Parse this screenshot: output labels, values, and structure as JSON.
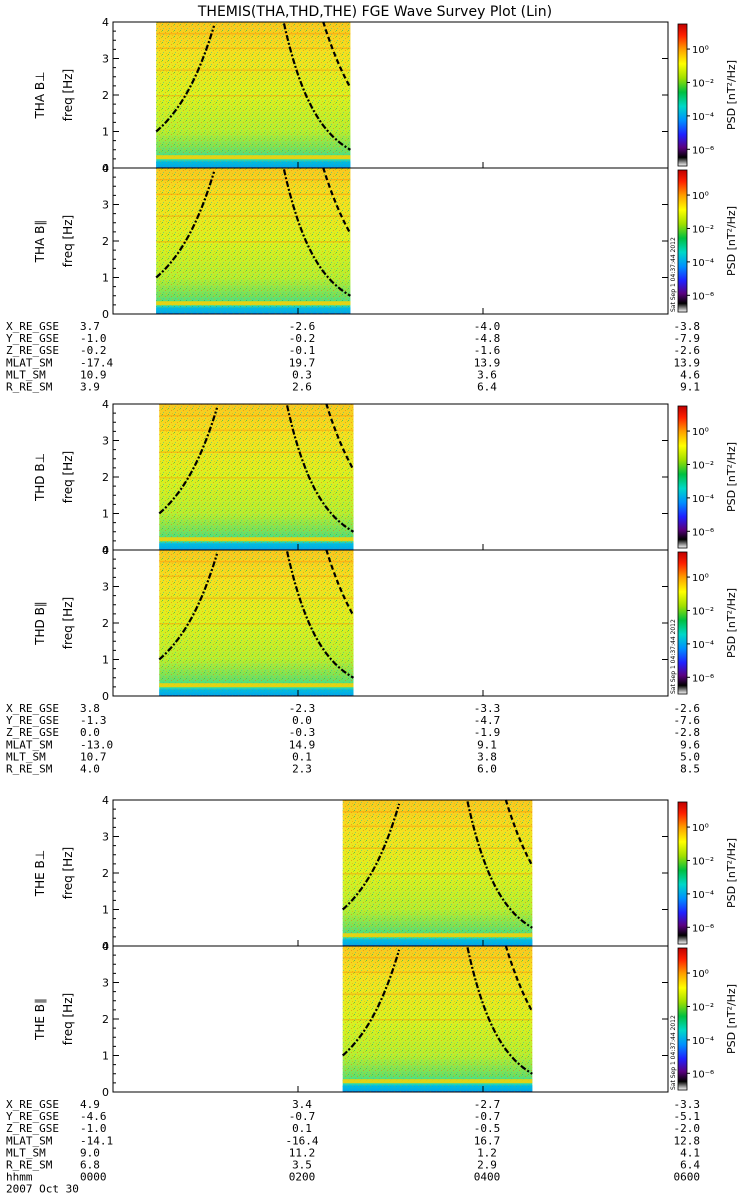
{
  "title": "THEMIS(THA,THD,THE) FGE Wave Survey Plot (Lin)",
  "colorbar": {
    "label": "PSD [nT²/Hz]",
    "ticks": [
      "10⁰",
      "10⁻²",
      "10⁻⁴",
      "10⁻⁶"
    ],
    "stamp": "Sat Sep  1 04:37:44 2012"
  },
  "colors": {
    "background": "#ffffff",
    "cyclotron_line": "#000000"
  },
  "chart_data": {
    "type": "heatmap",
    "x_unit": "hhmm",
    "xlim": [
      "0000",
      "0600"
    ],
    "ylim_hz": [
      0,
      4
    ],
    "y_ticks": [
      0,
      1,
      2,
      3,
      4
    ],
    "ylabel": "freq [Hz]",
    "colorbar_range_log10": [
      -7,
      1.5
    ],
    "probes": [
      {
        "name": "THA",
        "panels": [
          {
            "label": "THA B⊥",
            "data_interval_hhmm": [
              "0028",
              "0234"
            ]
          },
          {
            "label": "THA B∥",
            "data_interval_hhmm": [
              "0028",
              "0234"
            ]
          }
        ],
        "ephem_labels": [
          "X_RE_GSE",
          "Y_RE_GSE",
          "Z_RE_GSE",
          "MLAT_SM",
          "MLT_SM",
          "R_RE_SM"
        ],
        "ephem_values": [
          [
            "3.7",
            "-2.6",
            "-4.0",
            "-3.8"
          ],
          [
            "-1.0",
            "-0.2",
            "-4.8",
            "-7.9"
          ],
          [
            "-0.2",
            "-0.1",
            "-1.6",
            "-2.6"
          ],
          [
            "-17.4",
            "19.7",
            "13.9",
            "13.9"
          ],
          [
            "10.9",
            "0.3",
            "3.6",
            "4.6"
          ],
          [
            "3.9",
            "2.6",
            "6.4",
            "9.1"
          ]
        ]
      },
      {
        "name": "THD",
        "panels": [
          {
            "label": "THD B⊥",
            "data_interval_hhmm": [
              "0030",
              "0236"
            ]
          },
          {
            "label": "THD B∥",
            "data_interval_hhmm": [
              "0030",
              "0236"
            ]
          }
        ],
        "ephem_labels": [
          "X_RE_GSE",
          "Y_RE_GSE",
          "Z_RE_GSE",
          "MLAT_SM",
          "MLT_SM",
          "R_RE_SM"
        ],
        "ephem_values": [
          [
            "3.8",
            "-2.3",
            "-3.3",
            "-2.6"
          ],
          [
            "-1.3",
            "0.0",
            "-4.7",
            "-7.6"
          ],
          [
            "0.0",
            "-0.3",
            "-1.9",
            "-2.8"
          ],
          [
            "-13.0",
            "14.9",
            "9.1",
            "9.6"
          ],
          [
            "10.7",
            "0.1",
            "3.8",
            "5.0"
          ],
          [
            "4.0",
            "2.3",
            "6.0",
            "8.5"
          ]
        ]
      },
      {
        "name": "THE",
        "panels": [
          {
            "label": "THE B⊥",
            "data_interval_hhmm": [
              "0229",
              "0432"
            ]
          },
          {
            "label": "THE B∥",
            "data_interval_hhmm": [
              "0229",
              "0432"
            ]
          }
        ],
        "ephem_labels": [
          "X_RE_GSE",
          "Y_RE_GSE",
          "Z_RE_GSE",
          "MLAT_SM",
          "MLT_SM",
          "R_RE_SM",
          "hhmm"
        ],
        "ephem_values": [
          [
            "4.9",
            "3.4",
            "-2.7",
            "-3.3"
          ],
          [
            "-4.6",
            "-0.7",
            "-0.7",
            "-5.1"
          ],
          [
            "-1.0",
            "0.1",
            "-0.5",
            "-2.0"
          ],
          [
            "-14.1",
            "-16.4",
            "16.7",
            "12.8"
          ],
          [
            "9.0",
            "11.2",
            "1.2",
            "4.1"
          ],
          [
            "6.8",
            "3.5",
            "2.9",
            "6.4"
          ],
          [
            "0000",
            "0200",
            "0400",
            "0600"
          ]
        ],
        "date": "2007 Oct 30"
      }
    ]
  }
}
